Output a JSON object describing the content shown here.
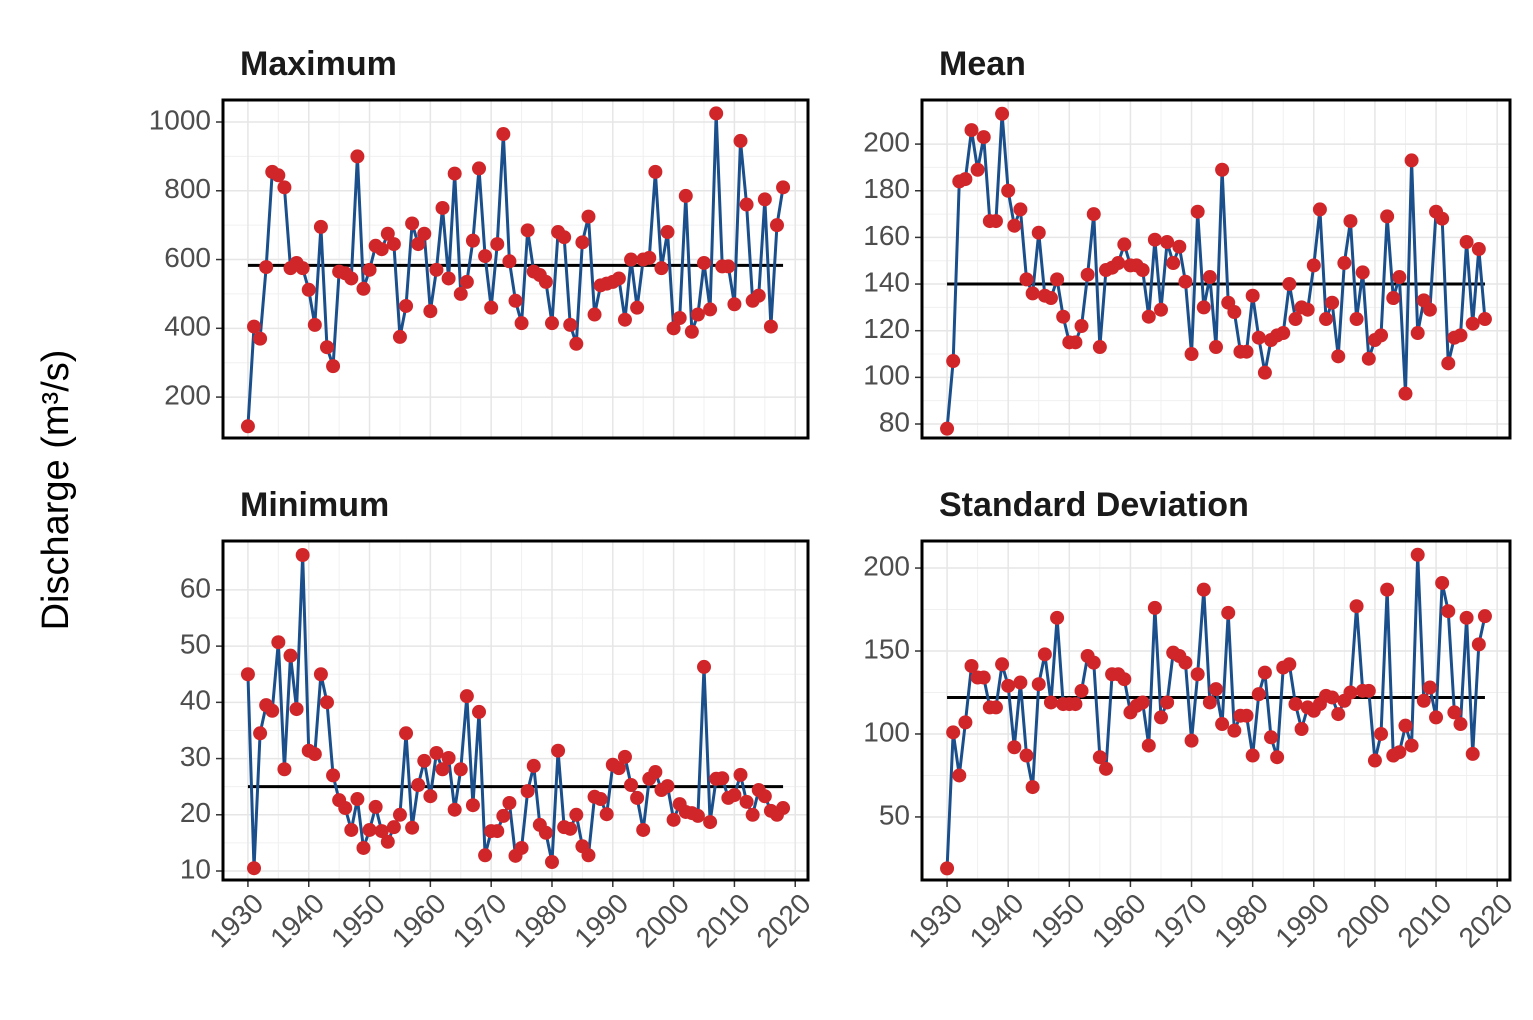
{
  "ylabel": "Discharge (m³/s)",
  "chart_data": [
    {
      "type": "line",
      "title": "Maximum",
      "x": [
        1930,
        1931,
        1932,
        1933,
        1934,
        1935,
        1936,
        1937,
        1938,
        1939,
        1940,
        1941,
        1942,
        1943,
        1944,
        1945,
        1946,
        1947,
        1948,
        1949,
        1950,
        1951,
        1952,
        1953,
        1954,
        1955,
        1956,
        1957,
        1958,
        1959,
        1960,
        1961,
        1962,
        1963,
        1964,
        1965,
        1966,
        1967,
        1968,
        1969,
        1970,
        1971,
        1972,
        1973,
        1974,
        1975,
        1976,
        1977,
        1978,
        1979,
        1980,
        1981,
        1982,
        1983,
        1984,
        1985,
        1986,
        1987,
        1988,
        1989,
        1990,
        1991,
        1992,
        1993,
        1994,
        1995,
        1996,
        1997,
        1998,
        1999,
        2000,
        2001,
        2002,
        2003,
        2004,
        2005,
        2006,
        2007,
        2008,
        2009,
        2010,
        2011,
        2012,
        2013,
        2014,
        2015,
        2016,
        2017,
        2018
      ],
      "series": [
        {
          "color": "#1a4f8b",
          "marker_color": "#d0262a",
          "values": [
            115,
            405,
            370,
            578,
            855,
            845,
            810,
            575,
            590,
            575,
            512,
            410,
            695,
            345,
            290,
            565,
            560,
            545,
            900,
            515,
            570,
            640,
            630,
            675,
            645,
            375,
            465,
            705,
            645,
            675,
            450,
            570,
            750,
            545,
            850,
            500,
            535,
            655,
            865,
            610,
            460,
            645,
            965,
            595,
            480,
            415,
            685,
            565,
            555,
            535,
            415,
            680,
            665,
            410,
            355,
            650,
            725,
            440,
            525,
            530,
            535,
            545,
            425,
            600,
            460,
            600,
            605,
            855,
            575,
            680,
            400,
            430,
            785,
            390,
            440,
            590,
            455,
            1025,
            580,
            580,
            470,
            945,
            760,
            480,
            495,
            775,
            405,
            700,
            810
          ]
        }
      ],
      "hline": 583,
      "xlim": [
        1925.9,
        2022.1
      ],
      "xticks": [
        1930,
        1940,
        1950,
        1960,
        1970,
        1980,
        1990,
        2000,
        2010,
        2020
      ],
      "ylim": [
        81,
        1064
      ],
      "yticks": [
        200,
        400,
        600,
        800,
        1000
      ],
      "grid": true
    },
    {
      "type": "line",
      "title": "Mean",
      "x": [
        1930,
        1931,
        1932,
        1933,
        1934,
        1935,
        1936,
        1937,
        1938,
        1939,
        1940,
        1941,
        1942,
        1943,
        1944,
        1945,
        1946,
        1947,
        1948,
        1949,
        1950,
        1951,
        1952,
        1953,
        1954,
        1955,
        1956,
        1957,
        1958,
        1959,
        1960,
        1961,
        1962,
        1963,
        1964,
        1965,
        1966,
        1967,
        1968,
        1969,
        1970,
        1971,
        1972,
        1973,
        1974,
        1975,
        1976,
        1977,
        1978,
        1979,
        1980,
        1981,
        1982,
        1983,
        1984,
        1985,
        1986,
        1987,
        1988,
        1989,
        1990,
        1991,
        1992,
        1993,
        1994,
        1995,
        1996,
        1997,
        1998,
        1999,
        2000,
        2001,
        2002,
        2003,
        2004,
        2005,
        2006,
        2007,
        2008,
        2009,
        2010,
        2011,
        2012,
        2013,
        2014,
        2015,
        2016,
        2017,
        2018
      ],
      "series": [
        {
          "color": "#1a4f8b",
          "marker_color": "#d0262a",
          "values": [
            78,
            107,
            184,
            185,
            206,
            189,
            203,
            167,
            167,
            213,
            180,
            165,
            172,
            142,
            136,
            162,
            135,
            134,
            142,
            126,
            115,
            115,
            122,
            144,
            170,
            113,
            146,
            147,
            149,
            157,
            148,
            148,
            146,
            126,
            159,
            129,
            158,
            149,
            156,
            141,
            110,
            171,
            130,
            143,
            113,
            189,
            132,
            128,
            111,
            111,
            135,
            117,
            102,
            116,
            118,
            119,
            140,
            125,
            130,
            129,
            148,
            172,
            125,
            132,
            109,
            149,
            167,
            125,
            145,
            108,
            116,
            118,
            169,
            134,
            143,
            93,
            193,
            119,
            133,
            129,
            171,
            168,
            106,
            117,
            118,
            158,
            123,
            155,
            125
          ]
        }
      ],
      "hline": 140,
      "xlim": [
        1925.9,
        2022.1
      ],
      "xticks": [
        1930,
        1940,
        1950,
        1960,
        1970,
        1980,
        1990,
        2000,
        2010,
        2020
      ],
      "ylim": [
        74,
        218.9
      ],
      "yticks": [
        80,
        100,
        120,
        140,
        160,
        180,
        200
      ],
      "grid": true
    },
    {
      "type": "line",
      "title": "Minimum",
      "x": [
        1930,
        1931,
        1932,
        1933,
        1934,
        1935,
        1936,
        1937,
        1938,
        1939,
        1940,
        1941,
        1942,
        1943,
        1944,
        1945,
        1946,
        1947,
        1948,
        1949,
        1950,
        1951,
        1952,
        1953,
        1954,
        1955,
        1956,
        1957,
        1958,
        1959,
        1960,
        1961,
        1962,
        1963,
        1964,
        1965,
        1966,
        1967,
        1968,
        1969,
        1970,
        1971,
        1972,
        1973,
        1974,
        1975,
        1976,
        1977,
        1978,
        1979,
        1980,
        1981,
        1982,
        1983,
        1984,
        1985,
        1986,
        1987,
        1988,
        1989,
        1990,
        1991,
        1992,
        1993,
        1994,
        1995,
        1996,
        1997,
        1998,
        1999,
        2000,
        2001,
        2002,
        2003,
        2004,
        2005,
        2006,
        2007,
        2008,
        2009,
        2010,
        2011,
        2012,
        2013,
        2014,
        2015,
        2016,
        2017,
        2018
      ],
      "series": [
        {
          "color": "#1a4f8b",
          "marker_color": "#d0262a",
          "values": [
            45,
            10.5,
            34.5,
            39.5,
            38.5,
            50.7,
            28.1,
            48.3,
            38.8,
            66.2,
            31.4,
            30.8,
            45,
            40,
            27,
            22.6,
            21.2,
            17.3,
            22.8,
            14.1,
            17.3,
            21.4,
            17.1,
            15.2,
            17.8,
            20,
            34.5,
            17.7,
            25.3,
            29.6,
            23.3,
            31,
            28.1,
            30.1,
            20.9,
            28.1,
            41.1,
            21.7,
            38.3,
            12.8,
            17.1,
            17.1,
            19.8,
            22.1,
            12.7,
            14.1,
            24.2,
            28.7,
            18.2,
            16.8,
            11.6,
            31.4,
            17.8,
            17.5,
            20,
            14.4,
            12.8,
            23.2,
            22.8,
            20.1,
            28.9,
            28.3,
            30.3,
            25.3,
            23,
            17.3,
            26.4,
            27.6,
            24.4,
            25.1,
            19.1,
            21.9,
            20.5,
            20.3,
            19.8,
            46.3,
            18.7,
            26.4,
            26.5,
            23,
            23.5,
            27.1,
            22.3,
            20,
            24.4,
            23.3,
            20.7,
            20,
            21.2
          ]
        }
      ],
      "hline": 25,
      "xlim": [
        1925.9,
        2022.1
      ],
      "xticks": [
        1930,
        1940,
        1950,
        1960,
        1970,
        1980,
        1990,
        2000,
        2010,
        2020
      ],
      "ylim": [
        8.4,
        68.7
      ],
      "yticks": [
        10,
        20,
        30,
        40,
        50,
        60
      ],
      "grid": true
    },
    {
      "type": "line",
      "title": "Standard Deviation",
      "x": [
        1930,
        1931,
        1932,
        1933,
        1934,
        1935,
        1936,
        1937,
        1938,
        1939,
        1940,
        1941,
        1942,
        1943,
        1944,
        1945,
        1946,
        1947,
        1948,
        1949,
        1950,
        1951,
        1952,
        1953,
        1954,
        1955,
        1956,
        1957,
        1958,
        1959,
        1960,
        1961,
        1962,
        1963,
        1964,
        1965,
        1966,
        1967,
        1968,
        1969,
        1970,
        1971,
        1972,
        1973,
        1974,
        1975,
        1976,
        1977,
        1978,
        1979,
        1980,
        1981,
        1982,
        1983,
        1984,
        1985,
        1986,
        1987,
        1988,
        1989,
        1990,
        1991,
        1992,
        1993,
        1994,
        1995,
        1996,
        1997,
        1998,
        1999,
        2000,
        2001,
        2002,
        2003,
        2004,
        2005,
        2006,
        2007,
        2008,
        2009,
        2010,
        2011,
        2012,
        2013,
        2014,
        2015,
        2016,
        2017,
        2018
      ],
      "series": [
        {
          "color": "#1a4f8b",
          "marker_color": "#d0262a",
          "values": [
            19,
            101,
            75,
            107,
            141,
            134,
            134,
            116,
            116,
            142,
            129,
            92,
            131,
            87,
            68,
            130,
            148,
            119,
            170,
            118,
            118,
            118,
            126,
            147,
            143,
            86,
            79,
            136,
            136,
            133,
            113,
            117,
            119,
            93,
            176,
            110,
            119,
            149,
            147,
            143,
            96,
            136,
            187,
            119,
            127,
            106,
            173,
            102,
            111,
            111,
            87,
            124,
            137,
            98,
            86,
            140,
            142,
            118,
            103,
            116,
            114,
            118,
            123,
            122,
            112,
            120,
            125,
            177,
            126,
            126,
            84,
            100,
            187,
            87,
            89,
            105,
            93,
            208,
            120,
            128,
            110,
            191,
            174,
            113,
            106,
            170,
            88,
            154,
            171
          ]
        }
      ],
      "hline": 122,
      "xlim": [
        1925.9,
        2022.1
      ],
      "xticks": [
        1930,
        1940,
        1950,
        1960,
        1970,
        1980,
        1990,
        2000,
        2010,
        2020
      ],
      "ylim": [
        12,
        216.3
      ],
      "yticks": [
        50,
        100,
        150,
        200
      ],
      "grid": true
    }
  ]
}
